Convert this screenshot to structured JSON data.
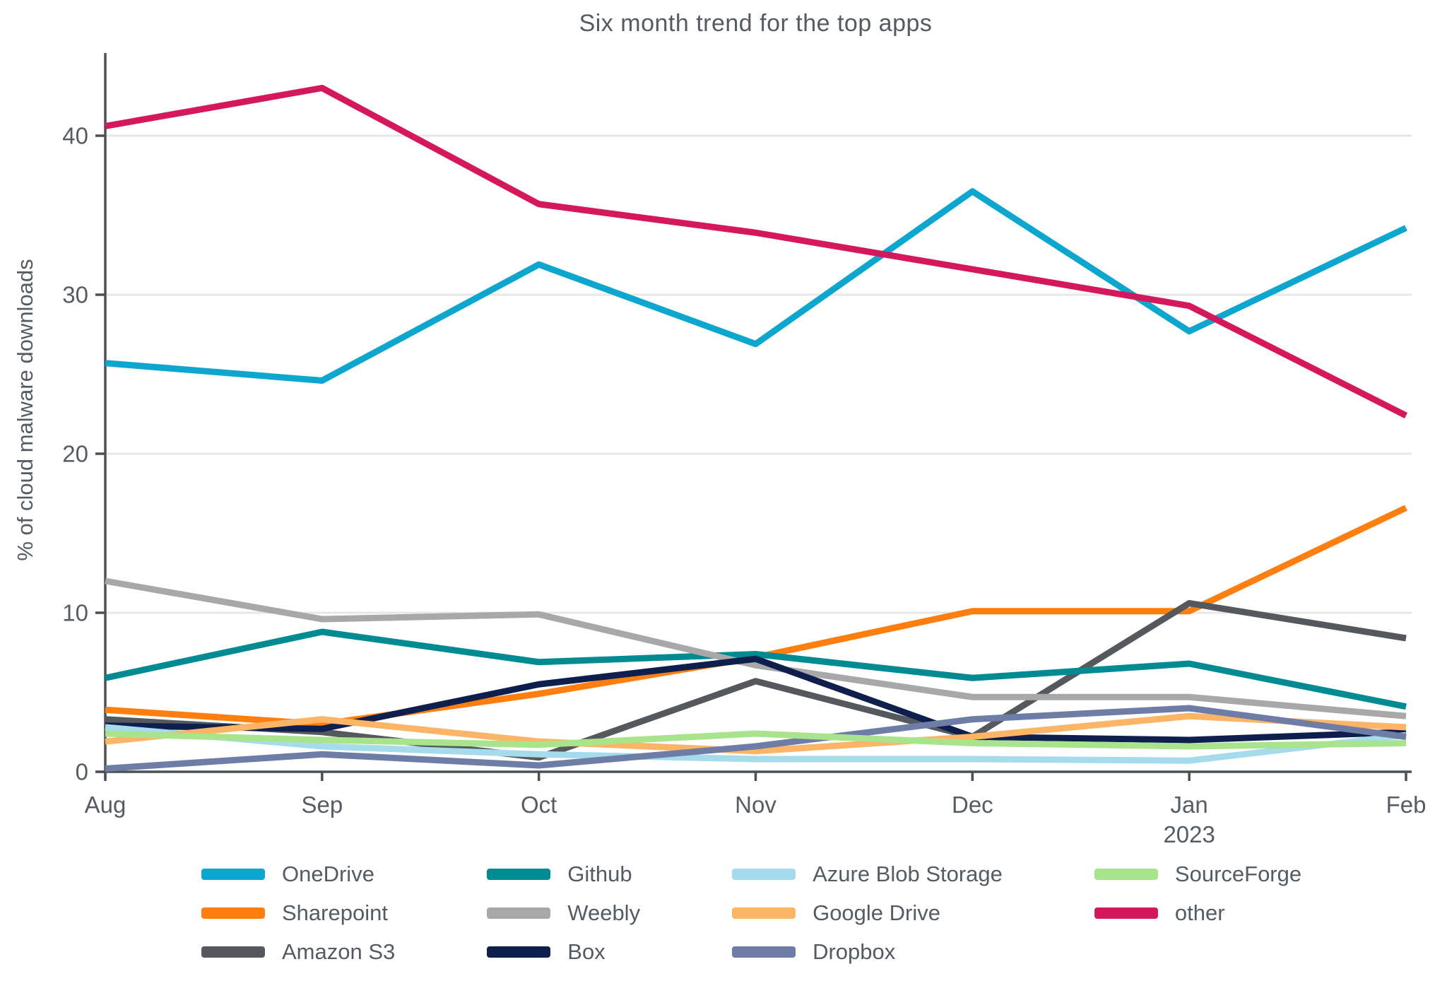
{
  "chart_data": {
    "type": "line",
    "title": "Six month trend for the top apps",
    "xlabel": "",
    "ylabel": "% of cloud malware downloads",
    "x": [
      "Aug",
      "Sep",
      "Oct",
      "Nov",
      "Dec",
      "Jan",
      "Feb"
    ],
    "x_sublabels": [
      "",
      "",
      "",
      "",
      "",
      "2023",
      ""
    ],
    "y_ticks": [
      0,
      10,
      20,
      30,
      40
    ],
    "ylim": [
      0,
      45
    ],
    "grid": "horizontal",
    "legend_position": "bottom",
    "legend_columns": 4,
    "legend_rows": 3,
    "series": [
      {
        "name": "OneDrive",
        "color": "#0da6cf",
        "values": [
          25.7,
          24.6,
          31.9,
          26.9,
          36.5,
          27.7,
          34.2
        ]
      },
      {
        "name": "Sharepoint",
        "color": "#fe7f10",
        "values": [
          3.9,
          3.0,
          4.9,
          7.2,
          10.1,
          10.1,
          16.6
        ]
      },
      {
        "name": "Amazon S3",
        "color": "#55595e",
        "values": [
          3.3,
          2.5,
          0.9,
          5.7,
          2.2,
          10.6,
          8.4
        ]
      },
      {
        "name": "Github",
        "color": "#008b92",
        "values": [
          5.9,
          8.8,
          6.9,
          7.4,
          5.9,
          6.8,
          4.1
        ]
      },
      {
        "name": "Weebly",
        "color": "#a8a8a8",
        "values": [
          12.0,
          9.6,
          9.9,
          6.7,
          4.7,
          4.7,
          3.5
        ]
      },
      {
        "name": "Box",
        "color": "#0f1f4d",
        "values": [
          2.9,
          2.7,
          5.5,
          7.1,
          2.2,
          2.0,
          2.5
        ]
      },
      {
        "name": "Azure Blob Storage",
        "color": "#a6dbec",
        "values": [
          2.8,
          1.6,
          1.1,
          0.8,
          0.8,
          0.7,
          2.3
        ]
      },
      {
        "name": "Google Drive",
        "color": "#fcb566",
        "values": [
          1.9,
          3.3,
          1.9,
          1.3,
          2.2,
          3.5,
          2.8
        ]
      },
      {
        "name": "Dropbox",
        "color": "#6e7da6",
        "values": [
          0.2,
          1.1,
          0.4,
          1.6,
          3.3,
          4.0,
          2.2
        ]
      },
      {
        "name": "SourceForge",
        "color": "#a9e48c",
        "values": [
          2.4,
          2.0,
          1.7,
          2.4,
          1.8,
          1.6,
          1.8
        ]
      },
      {
        "name": "other",
        "color": "#d5175c",
        "values": [
          40.6,
          43.0,
          35.7,
          33.9,
          31.6,
          29.3,
          22.4
        ]
      }
    ],
    "axis_color": "#4b5055",
    "grid_color": "#e7e7e7",
    "tick_label_color": "#565c62"
  }
}
